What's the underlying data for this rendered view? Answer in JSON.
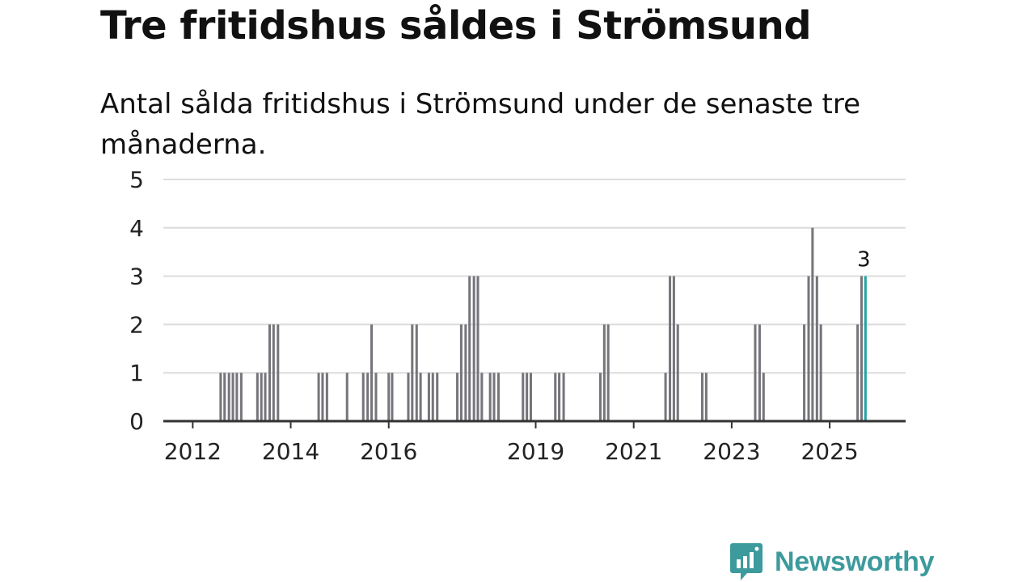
{
  "title": "Tre fritidshus såldes i Strömsund",
  "subtitle": "Antal sålda fritidshus i Strömsund under de senaste tre månaderna.",
  "brand": "Newsworthy",
  "colors": {
    "bar": "#76757b",
    "highlight": "#22a3a4",
    "grid": "#dcdcdc",
    "axis": "#333333",
    "brand": "#3d9a9d"
  },
  "chart_data": {
    "type": "bar",
    "title": "Tre fritidshus såldes i Strömsund",
    "xlabel": "",
    "ylabel": "",
    "ylim": [
      0,
      5
    ],
    "yticks": [
      0,
      1,
      2,
      3,
      4,
      5
    ],
    "x_tick_labels": [
      {
        "label": "2012",
        "year": 2012.0
      },
      {
        "label": "2014",
        "year": 2014.0
      },
      {
        "label": "2016",
        "year": 2016.0
      },
      {
        "label": "2019",
        "year": 2019.0
      },
      {
        "label": "2021",
        "year": 2021.0
      },
      {
        "label": "2023",
        "year": 2023.0
      },
      {
        "label": "2025",
        "year": 2025.0
      }
    ],
    "x_range": [
      2011.4,
      2026.55
    ],
    "bar_width_years": 0.05,
    "annotation": {
      "text": "3",
      "index_of_bar": "last"
    },
    "bars": [
      {
        "t": 2012.57,
        "v": 1
      },
      {
        "t": 2012.65,
        "v": 1
      },
      {
        "t": 2012.74,
        "v": 1
      },
      {
        "t": 2012.82,
        "v": 1
      },
      {
        "t": 2012.9,
        "v": 1
      },
      {
        "t": 2012.99,
        "v": 1
      },
      {
        "t": 2013.32,
        "v": 1
      },
      {
        "t": 2013.4,
        "v": 1
      },
      {
        "t": 2013.48,
        "v": 1
      },
      {
        "t": 2013.57,
        "v": 2
      },
      {
        "t": 2013.65,
        "v": 2
      },
      {
        "t": 2013.74,
        "v": 2
      },
      {
        "t": 2014.57,
        "v": 1
      },
      {
        "t": 2014.65,
        "v": 1
      },
      {
        "t": 2014.74,
        "v": 1
      },
      {
        "t": 2015.15,
        "v": 1
      },
      {
        "t": 2015.48,
        "v": 1
      },
      {
        "t": 2015.57,
        "v": 1
      },
      {
        "t": 2015.65,
        "v": 2
      },
      {
        "t": 2015.74,
        "v": 1
      },
      {
        "t": 2016.0,
        "v": 1
      },
      {
        "t": 2016.07,
        "v": 1
      },
      {
        "t": 2016.4,
        "v": 1
      },
      {
        "t": 2016.48,
        "v": 2
      },
      {
        "t": 2016.57,
        "v": 2
      },
      {
        "t": 2016.65,
        "v": 1
      },
      {
        "t": 2016.82,
        "v": 1
      },
      {
        "t": 2016.9,
        "v": 1
      },
      {
        "t": 2016.99,
        "v": 1
      },
      {
        "t": 2017.4,
        "v": 1
      },
      {
        "t": 2017.48,
        "v": 2
      },
      {
        "t": 2017.57,
        "v": 2
      },
      {
        "t": 2017.65,
        "v": 3
      },
      {
        "t": 2017.74,
        "v": 3
      },
      {
        "t": 2017.82,
        "v": 3
      },
      {
        "t": 2017.9,
        "v": 1
      },
      {
        "t": 2018.07,
        "v": 1
      },
      {
        "t": 2018.15,
        "v": 1
      },
      {
        "t": 2018.24,
        "v": 1
      },
      {
        "t": 2018.74,
        "v": 1
      },
      {
        "t": 2018.82,
        "v": 1
      },
      {
        "t": 2018.9,
        "v": 1
      },
      {
        "t": 2019.4,
        "v": 1
      },
      {
        "t": 2019.48,
        "v": 1
      },
      {
        "t": 2019.57,
        "v": 1
      },
      {
        "t": 2020.32,
        "v": 1
      },
      {
        "t": 2020.4,
        "v": 2
      },
      {
        "t": 2020.48,
        "v": 2
      },
      {
        "t": 2021.65,
        "v": 1
      },
      {
        "t": 2021.74,
        "v": 3
      },
      {
        "t": 2021.82,
        "v": 3
      },
      {
        "t": 2021.9,
        "v": 2
      },
      {
        "t": 2022.4,
        "v": 1
      },
      {
        "t": 2022.48,
        "v": 1
      },
      {
        "t": 2023.48,
        "v": 2
      },
      {
        "t": 2023.57,
        "v": 2
      },
      {
        "t": 2023.65,
        "v": 1
      },
      {
        "t": 2024.48,
        "v": 2
      },
      {
        "t": 2024.57,
        "v": 3
      },
      {
        "t": 2024.65,
        "v": 4
      },
      {
        "t": 2024.74,
        "v": 3
      },
      {
        "t": 2024.82,
        "v": 2
      },
      {
        "t": 2025.57,
        "v": 2
      },
      {
        "t": 2025.65,
        "v": 3
      },
      {
        "t": 2025.73,
        "v": 3
      }
    ]
  }
}
